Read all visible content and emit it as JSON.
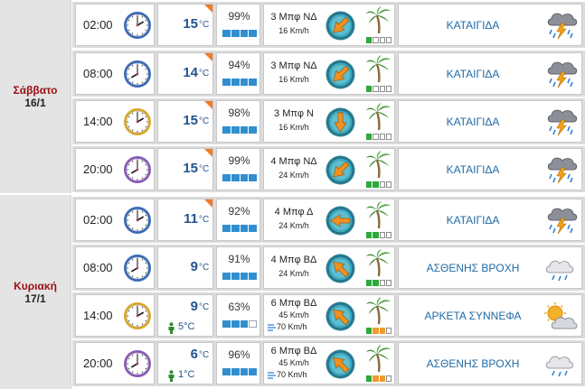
{
  "days": [
    {
      "name": "Σάββατο",
      "date": "16/1"
    },
    {
      "name": "Κυριακή",
      "date": "17/1"
    }
  ],
  "rows": [
    {
      "time": "02:00",
      "clock_icon": "clock-icon",
      "clock_color": "#3a6ab8",
      "temp": "15",
      "unit": "°C",
      "flag": true,
      "feels": "",
      "humidity": "99%",
      "hum_level": 4,
      "wind": "3 Μπφ ΝΔ",
      "speed": "16 Km/h",
      "gust": "",
      "wind_dir": "ΝΔ",
      "strength": 1,
      "strength_color": "green",
      "desc": "ΚΑΤΑΙΓΙΔΑ",
      "weather_icon": "thunderstorm-icon"
    },
    {
      "time": "08:00",
      "clock_icon": "clock-icon",
      "clock_color": "#3a6ab8",
      "temp": "14",
      "unit": "°C",
      "flag": true,
      "feels": "",
      "humidity": "94%",
      "hum_level": 4,
      "wind": "3 Μπφ ΝΔ",
      "speed": "16 Km/h",
      "gust": "",
      "wind_dir": "ΝΔ",
      "strength": 1,
      "strength_color": "green",
      "desc": "ΚΑΤΑΙΓΙΔΑ",
      "weather_icon": "thunderstorm-icon"
    },
    {
      "time": "14:00",
      "clock_icon": "clock-icon",
      "clock_color": "#d8a82a",
      "temp": "15",
      "unit": "°C",
      "flag": true,
      "feels": "",
      "humidity": "98%",
      "hum_level": 4,
      "wind": "3 Μπφ Ν",
      "speed": "16 Km/h",
      "gust": "",
      "wind_dir": "Ν",
      "strength": 1,
      "strength_color": "green",
      "desc": "ΚΑΤΑΙΓΙΔΑ",
      "weather_icon": "thunderstorm-icon"
    },
    {
      "time": "20:00",
      "clock_icon": "clock-icon",
      "clock_color": "#8a5ab8",
      "temp": "15",
      "unit": "°C",
      "flag": true,
      "feels": "",
      "humidity": "99%",
      "hum_level": 4,
      "wind": "4 Μπφ ΝΔ",
      "speed": "24 Km/h",
      "gust": "",
      "wind_dir": "ΝΔ",
      "strength": 2,
      "strength_color": "green",
      "desc": "ΚΑΤΑΙΓΙΔΑ",
      "weather_icon": "thunderstorm-icon"
    },
    {
      "time": "02:00",
      "clock_icon": "clock-icon",
      "clock_color": "#3a6ab8",
      "temp": "11",
      "unit": "°C",
      "flag": true,
      "feels": "",
      "humidity": "92%",
      "hum_level": 4,
      "wind": "4 Μπφ Δ",
      "speed": "24 Km/h",
      "gust": "",
      "wind_dir": "Δ",
      "strength": 2,
      "strength_color": "green",
      "desc": "ΚΑΤΑΙΓΙΔΑ",
      "weather_icon": "thunderstorm-icon"
    },
    {
      "time": "08:00",
      "clock_icon": "clock-icon",
      "clock_color": "#3a6ab8",
      "temp": "9",
      "unit": "°C",
      "flag": false,
      "feels": "",
      "humidity": "91%",
      "hum_level": 4,
      "wind": "4 Μπφ ΒΔ",
      "speed": "24 Km/h",
      "gust": "",
      "wind_dir": "ΒΔ",
      "strength": 2,
      "strength_color": "green",
      "desc": "ΑΣΘΕΝΗΣ ΒΡΟΧΗ",
      "weather_icon": "light-rain-icon"
    },
    {
      "time": "14:00",
      "clock_icon": "clock-icon",
      "clock_color": "#d8a82a",
      "temp": "9",
      "unit": "°C",
      "flag": false,
      "feels": "5°C",
      "humidity": "63%",
      "hum_level": 3,
      "wind": "6 Μπφ ΒΔ",
      "speed": "45 Km/h",
      "gust": "70 Km/h",
      "wind_dir": "ΒΔ",
      "strength": 3,
      "strength_color": "orange",
      "desc": "ΑΡΚΕΤΑ ΣΥΝΝΕΦΑ",
      "weather_icon": "partly-cloudy-icon"
    },
    {
      "time": "20:00",
      "clock_icon": "clock-icon",
      "clock_color": "#8a5ab8",
      "temp": "6",
      "unit": "°C",
      "flag": false,
      "feels": "1°C",
      "humidity": "96%",
      "hum_level": 4,
      "wind": "6 Μπφ ΒΔ",
      "speed": "45 Km/h",
      "gust": "70 Km/h",
      "wind_dir": "ΒΔ",
      "strength": 3,
      "strength_color": "orange",
      "desc": "ΑΣΘΕΝΗΣ ΒΡΟΧΗ",
      "weather_icon": "light-rain-icon"
    }
  ]
}
